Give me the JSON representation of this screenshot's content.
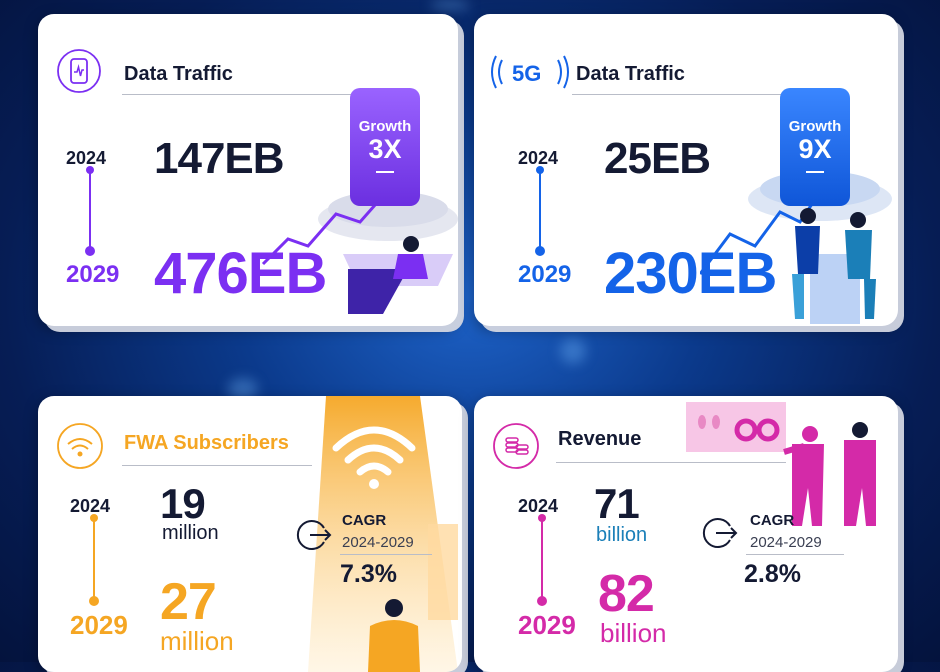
{
  "colors": {
    "purple": "#7b2ff2",
    "blue": "#1463e8",
    "orange": "#f5a623",
    "magenta": "#d42aa8",
    "dark": "#141a33"
  },
  "cards": {
    "data_traffic": {
      "title": "Data Traffic",
      "year_start": "2024",
      "year_end": "2029",
      "value_start": "147EB",
      "value_end": "476EB",
      "growth_label": "Growth",
      "growth_value": "3X",
      "icon": "phone-traffic-icon"
    },
    "fiveg_traffic": {
      "badge": "5G",
      "title": "Data Traffic",
      "year_start": "2024",
      "year_end": "2029",
      "value_start": "25EB",
      "value_end": "230EB",
      "growth_label": "Growth",
      "growth_value": "9X",
      "icon": "5g-signal-icon"
    },
    "fwa": {
      "title": "FWA Subscribers",
      "year_start": "2024",
      "year_end": "2029",
      "value_start": "19",
      "unit_start": "million",
      "value_end": "27",
      "unit_end": "million",
      "cagr_label": "CAGR",
      "cagr_range": "2024-2029",
      "cagr_value": "7.3%",
      "icon": "wifi-icon"
    },
    "revenue": {
      "title": "Revenue",
      "year_start": "2024",
      "year_end": "2029",
      "value_start": "71",
      "unit_start": "billion",
      "value_end": "82",
      "unit_end": "billion",
      "cagr_label": "CAGR",
      "cagr_range": "2024-2029",
      "cagr_value": "2.8%",
      "icon": "coins-icon"
    }
  }
}
